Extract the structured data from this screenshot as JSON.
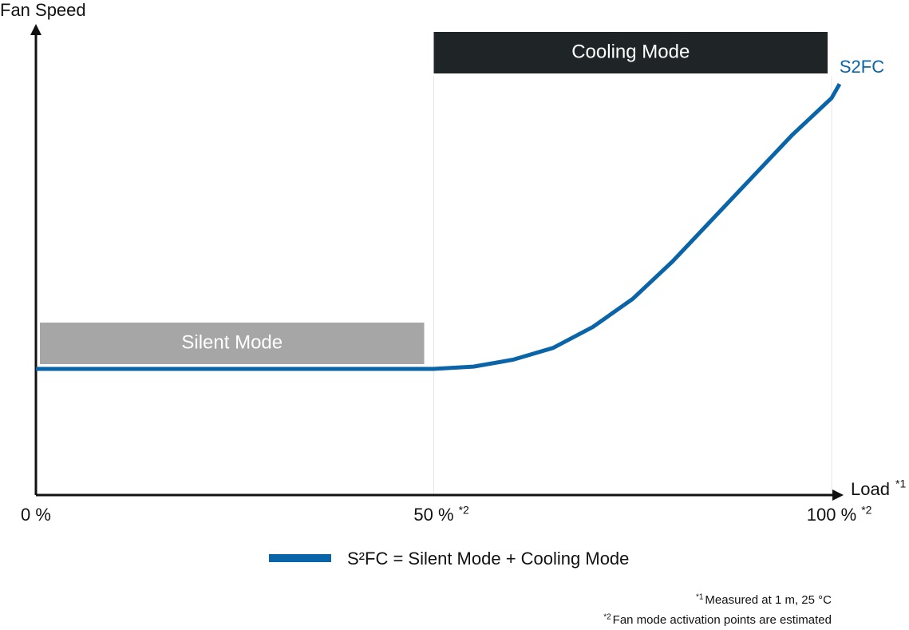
{
  "chart_data": {
    "type": "line",
    "ylabel": "Fan Speed",
    "xlabel": "Load",
    "xlabel_note": "*1",
    "x": [
      0,
      50,
      55,
      60,
      65,
      70,
      75,
      80,
      85,
      90,
      95,
      100,
      101
    ],
    "series": [
      {
        "name": "S2FC",
        "color": "#0a64a8",
        "values": [
          27,
          27,
          27.5,
          29,
          31.5,
          36,
          42,
          50,
          59,
          68,
          77,
          85,
          88
        ]
      }
    ],
    "xlim": [
      0,
      100
    ],
    "ylim": [
      0,
      100
    ],
    "xticks": [
      {
        "value": 0,
        "label": "0 %"
      },
      {
        "value": 50,
        "label": "50 %",
        "note": "*2"
      },
      {
        "value": 100,
        "label": "100 %",
        "note": "*2"
      }
    ],
    "grid": true,
    "modes": [
      {
        "name": "Silent Mode",
        "color": "#a6a6a6",
        "x": [
          0.5,
          48.8
        ]
      },
      {
        "name": "Cooling Mode",
        "color": "#1f2527",
        "x": [
          50,
          99.5
        ]
      }
    ],
    "legend": "S²FC = Silent Mode + Cooling Mode",
    "footnotes": [
      {
        "marker": "*1",
        "text": "Measured at 1 m, 25 °C"
      },
      {
        "marker": "*2",
        "text": "Fan mode activation points are estimated"
      }
    ]
  }
}
